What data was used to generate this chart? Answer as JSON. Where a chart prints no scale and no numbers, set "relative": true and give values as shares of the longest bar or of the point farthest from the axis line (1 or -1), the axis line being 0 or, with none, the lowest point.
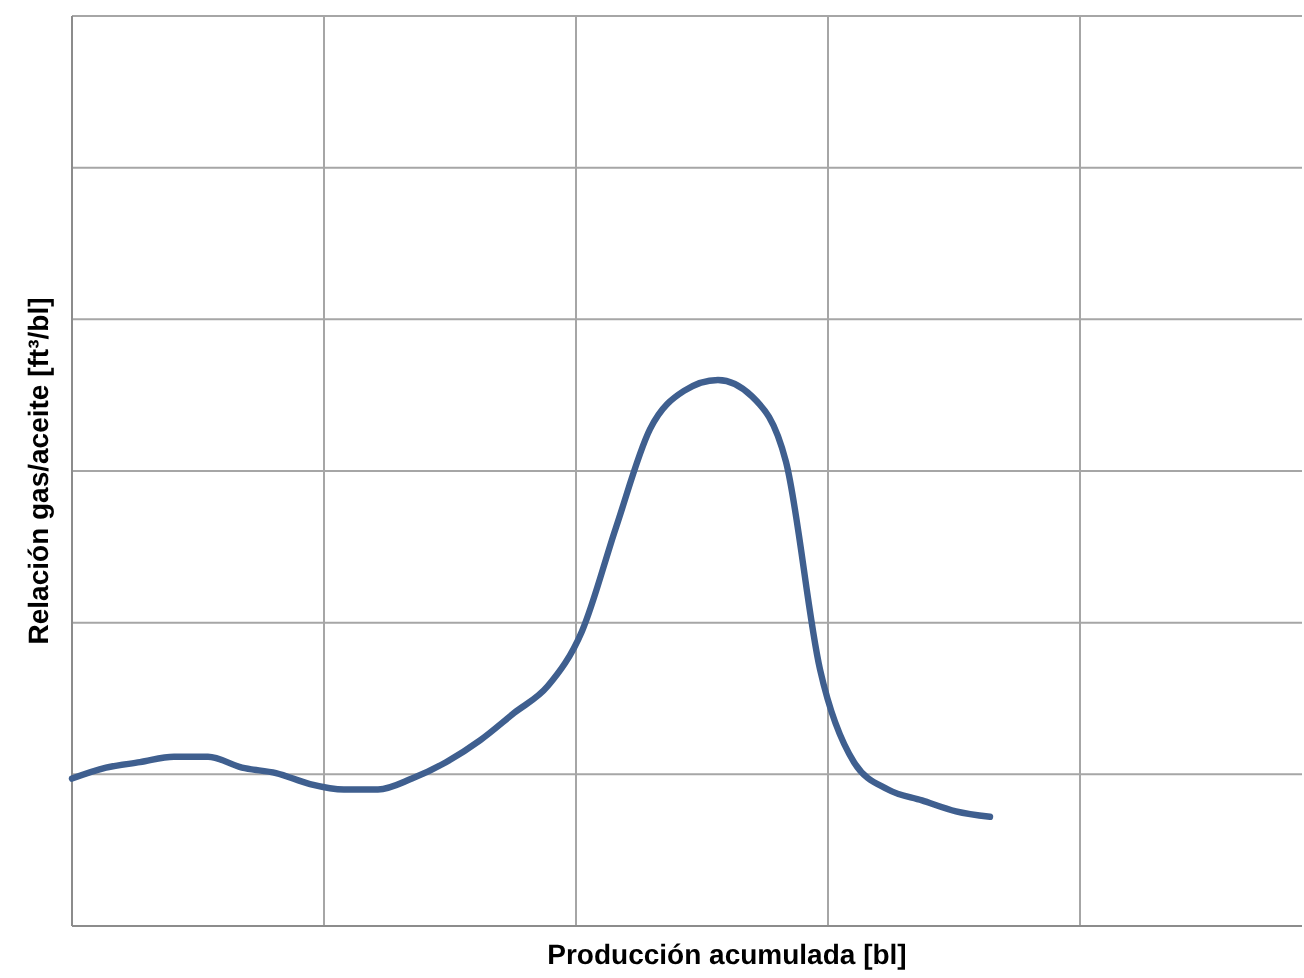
{
  "chart_data": {
    "type": "line",
    "xlabel": "Producción acumulada [bl]",
    "ylabel": "Relación gas/aceite  [ft³/bl]",
    "relative": true,
    "grid": true,
    "legend": false,
    "marker": "none",
    "line_style": "solid",
    "categories": [
      null,
      null,
      null,
      null,
      null,
      null,
      null,
      null,
      null,
      null,
      null,
      null,
      null,
      null,
      null,
      null,
      null,
      null,
      null,
      null,
      null,
      null,
      null,
      null,
      null,
      null,
      null,
      null
    ],
    "series": [
      {
        "color": "#3f5f8f",
        "values": [
          0.27,
          0.29,
          0.3,
          0.31,
          0.31,
          0.29,
          0.28,
          0.26,
          0.25,
          0.25,
          0.27,
          0.3,
          0.34,
          0.39,
          0.44,
          0.54,
          0.73,
          0.91,
          0.98,
          1,
          0.97,
          0.85,
          0.47,
          0.3,
          0.25,
          0.23,
          0.21,
          0.2
        ]
      }
    ]
  }
}
